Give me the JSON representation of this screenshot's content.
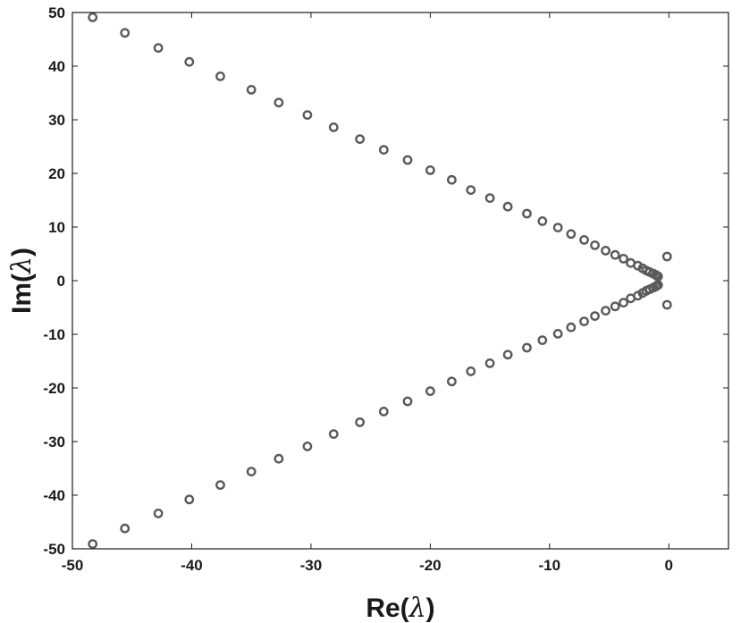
{
  "chart_data": {
    "type": "scatter",
    "title": "",
    "xlabel_prefix": "Re(",
    "xlabel_symbol": "λ",
    "xlabel_suffix": ")",
    "ylabel_prefix": "Im(",
    "ylabel_symbol": "λ",
    "ylabel_suffix": ")",
    "xlim": [
      -50,
      5
    ],
    "ylim": [
      -50,
      50
    ],
    "xticks": [
      -50,
      -40,
      -30,
      -20,
      -10,
      0
    ],
    "yticks": [
      -50,
      -40,
      -30,
      -20,
      -10,
      0,
      10,
      20,
      30,
      40,
      50
    ],
    "grid": false,
    "marker": "circle",
    "marker_color": "#5a5a5a",
    "series": [
      {
        "points": [
          [
            -48.3,
            49.1
          ],
          [
            -45.6,
            46.2
          ],
          [
            -42.8,
            43.4
          ],
          [
            -40.2,
            40.8
          ],
          [
            -37.6,
            38.1
          ],
          [
            -35.0,
            35.6
          ],
          [
            -32.7,
            33.2
          ],
          [
            -30.3,
            30.9
          ],
          [
            -28.1,
            28.6
          ],
          [
            -25.9,
            26.4
          ],
          [
            -23.9,
            24.4
          ],
          [
            -21.9,
            22.5
          ],
          [
            -20.0,
            20.6
          ],
          [
            -18.2,
            18.8
          ],
          [
            -16.6,
            16.9
          ],
          [
            -15.0,
            15.4
          ],
          [
            -13.5,
            13.8
          ],
          [
            -11.9,
            12.5
          ],
          [
            -10.6,
            11.1
          ],
          [
            -9.3,
            9.9
          ],
          [
            -8.2,
            8.7
          ],
          [
            -7.1,
            7.6
          ],
          [
            -6.2,
            6.6
          ],
          [
            -5.3,
            5.6
          ],
          [
            -4.5,
            4.8
          ],
          [
            -3.8,
            4.1
          ],
          [
            -3.2,
            3.3
          ],
          [
            -2.6,
            2.8
          ],
          [
            -2.2,
            2.3
          ],
          [
            -1.9,
            1.9
          ],
          [
            -1.6,
            1.6
          ],
          [
            -1.3,
            1.3
          ],
          [
            -1.1,
            1.1
          ],
          [
            -1.0,
            0.9
          ],
          [
            -0.9,
            0.8
          ],
          [
            -0.15,
            4.5
          ],
          [
            -48.3,
            -49.1
          ],
          [
            -45.6,
            -46.2
          ],
          [
            -42.8,
            -43.4
          ],
          [
            -40.2,
            -40.8
          ],
          [
            -37.6,
            -38.1
          ],
          [
            -35.0,
            -35.6
          ],
          [
            -32.7,
            -33.2
          ],
          [
            -30.3,
            -30.9
          ],
          [
            -28.1,
            -28.6
          ],
          [
            -25.9,
            -26.4
          ],
          [
            -23.9,
            -24.4
          ],
          [
            -21.9,
            -22.5
          ],
          [
            -20.0,
            -20.6
          ],
          [
            -18.2,
            -18.8
          ],
          [
            -16.6,
            -16.9
          ],
          [
            -15.0,
            -15.4
          ],
          [
            -13.5,
            -13.8
          ],
          [
            -11.9,
            -12.5
          ],
          [
            -10.6,
            -11.1
          ],
          [
            -9.3,
            -9.9
          ],
          [
            -8.2,
            -8.7
          ],
          [
            -7.1,
            -7.6
          ],
          [
            -6.2,
            -6.6
          ],
          [
            -5.3,
            -5.6
          ],
          [
            -4.5,
            -4.8
          ],
          [
            -3.8,
            -4.1
          ],
          [
            -3.2,
            -3.3
          ],
          [
            -2.6,
            -2.8
          ],
          [
            -2.2,
            -2.3
          ],
          [
            -1.9,
            -1.9
          ],
          [
            -1.6,
            -1.6
          ],
          [
            -1.3,
            -1.3
          ],
          [
            -1.1,
            -1.1
          ],
          [
            -1.0,
            -0.9
          ],
          [
            -0.9,
            -0.8
          ],
          [
            -0.15,
            -4.5
          ]
        ]
      }
    ]
  }
}
